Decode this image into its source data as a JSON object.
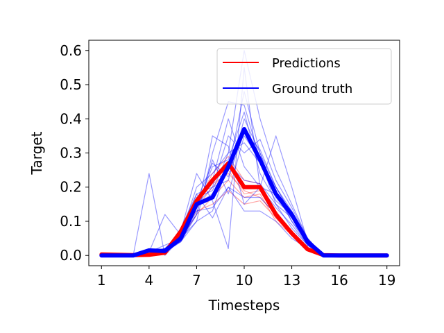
{
  "chart_data": {
    "type": "line",
    "xlabel": "Timesteps",
    "ylabel": "Target",
    "xlim": [
      0.2,
      19.8
    ],
    "ylim": [
      -0.03,
      0.63
    ],
    "x_ticks": [
      1,
      4,
      7,
      10,
      13,
      16,
      19
    ],
    "y_ticks": [
      0.0,
      0.1,
      0.2,
      0.3,
      0.4,
      0.5,
      0.6
    ],
    "y_tick_labels": [
      "0.0",
      "0.1",
      "0.2",
      "0.3",
      "0.4",
      "0.5",
      "0.6"
    ],
    "grid": false,
    "legend": {
      "position": "top-right",
      "entries": [
        {
          "label": "Predictions",
          "color": "#ff0000"
        },
        {
          "label": "Ground truth",
          "color": "#0000ff"
        }
      ]
    },
    "x": [
      1,
      2,
      3,
      4,
      5,
      6,
      7,
      8,
      9,
      10,
      11,
      12,
      13,
      14,
      15,
      16,
      17,
      18,
      19
    ],
    "series": [
      {
        "role": "prediction-mean",
        "color": "#ff0000",
        "values": [
          0.003,
          0.002,
          0.001,
          0.002,
          0.008,
          0.07,
          0.16,
          0.22,
          0.27,
          0.2,
          0.2,
          0.12,
          0.065,
          0.018,
          0.001,
          0.0,
          0.0,
          0.0,
          0.0
        ]
      },
      {
        "role": "ground-truth-mean",
        "color": "#0000ff",
        "values": [
          0.0,
          0.0,
          0.0,
          0.015,
          0.013,
          0.05,
          0.15,
          0.17,
          0.26,
          0.37,
          0.28,
          0.18,
          0.12,
          0.04,
          0.0,
          0.0,
          0.0,
          0.0,
          0.0
        ]
      },
      {
        "role": "prediction-sample",
        "color": "#ff0000",
        "values": [
          0.003,
          0.002,
          0.001,
          0.002,
          0.008,
          0.07,
          0.15,
          0.24,
          0.29,
          0.22,
          0.21,
          0.13,
          0.07,
          0.02,
          0.001,
          0.0,
          0.0,
          0.0,
          0.0
        ]
      },
      {
        "role": "prediction-sample",
        "color": "#ff0000",
        "values": [
          0.003,
          0.002,
          0.001,
          0.002,
          0.008,
          0.06,
          0.14,
          0.2,
          0.25,
          0.18,
          0.19,
          0.11,
          0.06,
          0.015,
          0.001,
          0.0,
          0.0,
          0.0,
          0.0
        ]
      },
      {
        "role": "prediction-sample",
        "color": "#ff0000",
        "values": [
          0.003,
          0.002,
          0.001,
          0.002,
          0.008,
          0.05,
          0.12,
          0.17,
          0.22,
          0.17,
          0.18,
          0.1,
          0.06,
          0.015,
          0.001,
          0.0,
          0.0,
          0.0,
          0.0
        ]
      },
      {
        "role": "prediction-sample",
        "color": "#ff0000",
        "values": [
          0.003,
          0.002,
          0.001,
          0.002,
          0.008,
          0.06,
          0.13,
          0.15,
          0.19,
          0.15,
          0.16,
          0.11,
          0.06,
          0.015,
          0.001,
          0.0,
          0.0,
          0.0,
          0.0
        ]
      },
      {
        "role": "prediction-sample",
        "color": "#ff0000",
        "values": [
          0.003,
          0.002,
          0.001,
          0.002,
          0.008,
          0.07,
          0.16,
          0.21,
          0.24,
          0.19,
          0.17,
          0.12,
          0.07,
          0.02,
          0.001,
          0.0,
          0.0,
          0.0,
          0.0
        ]
      },
      {
        "role": "ground-truth-sample",
        "color": "#0000ff",
        "values": [
          0.0,
          0.0,
          0.0,
          0.24,
          0.0,
          0.05,
          0.15,
          0.2,
          0.22,
          0.4,
          0.3,
          0.2,
          0.12,
          0.04,
          0.0,
          0.0,
          0.0,
          0.0,
          0.0
        ]
      },
      {
        "role": "ground-truth-sample",
        "color": "#0000ff",
        "values": [
          0.0,
          0.0,
          0.0,
          0.01,
          0.12,
          0.06,
          0.2,
          0.24,
          0.3,
          0.6,
          0.4,
          0.25,
          0.15,
          0.05,
          0.0,
          0.0,
          0.0,
          0.0,
          0.0
        ]
      },
      {
        "role": "ground-truth-sample",
        "color": "#0000ff",
        "values": [
          0.0,
          0.0,
          0.0,
          0.01,
          0.02,
          0.07,
          0.24,
          0.16,
          0.02,
          0.55,
          0.2,
          0.35,
          0.2,
          0.04,
          0.0,
          0.0,
          0.0,
          0.0,
          0.0
        ]
      },
      {
        "role": "ground-truth-sample",
        "color": "#0000ff",
        "values": [
          0.0,
          0.0,
          0.0,
          0.01,
          0.03,
          0.05,
          0.1,
          0.3,
          0.45,
          0.44,
          0.28,
          0.15,
          0.08,
          0.03,
          0.0,
          0.0,
          0.0,
          0.0,
          0.0
        ]
      },
      {
        "role": "ground-truth-sample",
        "color": "#0000ff",
        "values": [
          0.0,
          0.0,
          0.0,
          0.01,
          0.01,
          0.08,
          0.18,
          0.11,
          0.2,
          0.13,
          0.13,
          0.1,
          0.05,
          0.02,
          0.0,
          0.0,
          0.0,
          0.0,
          0.0
        ]
      },
      {
        "role": "ground-truth-sample",
        "color": "#0000ff",
        "values": [
          0.0,
          0.0,
          0.0,
          0.01,
          0.02,
          0.04,
          0.12,
          0.35,
          0.32,
          0.15,
          0.2,
          0.18,
          0.1,
          0.04,
          0.0,
          0.0,
          0.0,
          0.0,
          0.0
        ]
      },
      {
        "role": "ground-truth-sample",
        "color": "#0000ff",
        "values": [
          0.0,
          0.0,
          0.0,
          0.01,
          0.01,
          0.05,
          0.14,
          0.26,
          0.28,
          0.42,
          0.24,
          0.16,
          0.12,
          0.05,
          0.0,
          0.0,
          0.0,
          0.0,
          0.0
        ]
      },
      {
        "role": "ground-truth-sample",
        "color": "#0000ff",
        "values": [
          0.0,
          0.0,
          0.0,
          0.01,
          0.02,
          0.06,
          0.16,
          0.22,
          0.4,
          0.26,
          0.2,
          0.14,
          0.09,
          0.03,
          0.0,
          0.0,
          0.0,
          0.0,
          0.0
        ]
      },
      {
        "role": "ground-truth-sample",
        "color": "#0000ff",
        "values": [
          0.0,
          0.0,
          0.0,
          0.01,
          0.01,
          0.04,
          0.13,
          0.14,
          0.2,
          0.17,
          0.17,
          0.12,
          0.07,
          0.02,
          0.0,
          0.0,
          0.0,
          0.0,
          0.0
        ]
      },
      {
        "role": "ground-truth-sample",
        "color": "#0000ff",
        "values": [
          0.0,
          0.0,
          0.0,
          0.01,
          0.02,
          0.06,
          0.18,
          0.2,
          0.35,
          0.3,
          0.34,
          0.22,
          0.14,
          0.05,
          0.0,
          0.0,
          0.0,
          0.0,
          0.0
        ]
      },
      {
        "role": "ground-truth-sample",
        "color": "#0000ff",
        "values": [
          0.0,
          0.0,
          0.0,
          0.01,
          0.01,
          0.05,
          0.15,
          0.18,
          0.25,
          0.48,
          0.3,
          0.17,
          0.11,
          0.04,
          0.0,
          0.0,
          0.0,
          0.0,
          0.0
        ]
      },
      {
        "role": "ground-truth-sample",
        "color": "#0000ff",
        "values": [
          0.0,
          0.0,
          0.0,
          0.01,
          0.02,
          0.05,
          0.12,
          0.28,
          0.18,
          0.35,
          0.28,
          0.2,
          0.13,
          0.04,
          0.0,
          0.0,
          0.0,
          0.0,
          0.0
        ]
      },
      {
        "role": "ground-truth-sample",
        "color": "#0000ff",
        "values": [
          0.0,
          0.0,
          0.0,
          0.01,
          0.01,
          0.06,
          0.17,
          0.19,
          0.3,
          0.33,
          0.27,
          0.19,
          0.1,
          0.03,
          0.0,
          0.0,
          0.0,
          0.0,
          0.0
        ]
      },
      {
        "role": "ground-truth-sample",
        "color": "#0000ff",
        "values": [
          0.0,
          0.0,
          0.0,
          0.01,
          0.01,
          0.04,
          0.1,
          0.13,
          0.27,
          0.22,
          0.21,
          0.15,
          0.11,
          0.03,
          0.0,
          0.0,
          0.0,
          0.0,
          0.0
        ]
      },
      {
        "role": "ground-truth-sample",
        "color": "#0000ff",
        "values": [
          0.0,
          0.0,
          0.0,
          0.01,
          0.01,
          0.05,
          0.16,
          0.27,
          0.23,
          0.36,
          0.31,
          0.2,
          0.12,
          0.04,
          0.0,
          0.0,
          0.0,
          0.0,
          0.0
        ]
      }
    ]
  }
}
